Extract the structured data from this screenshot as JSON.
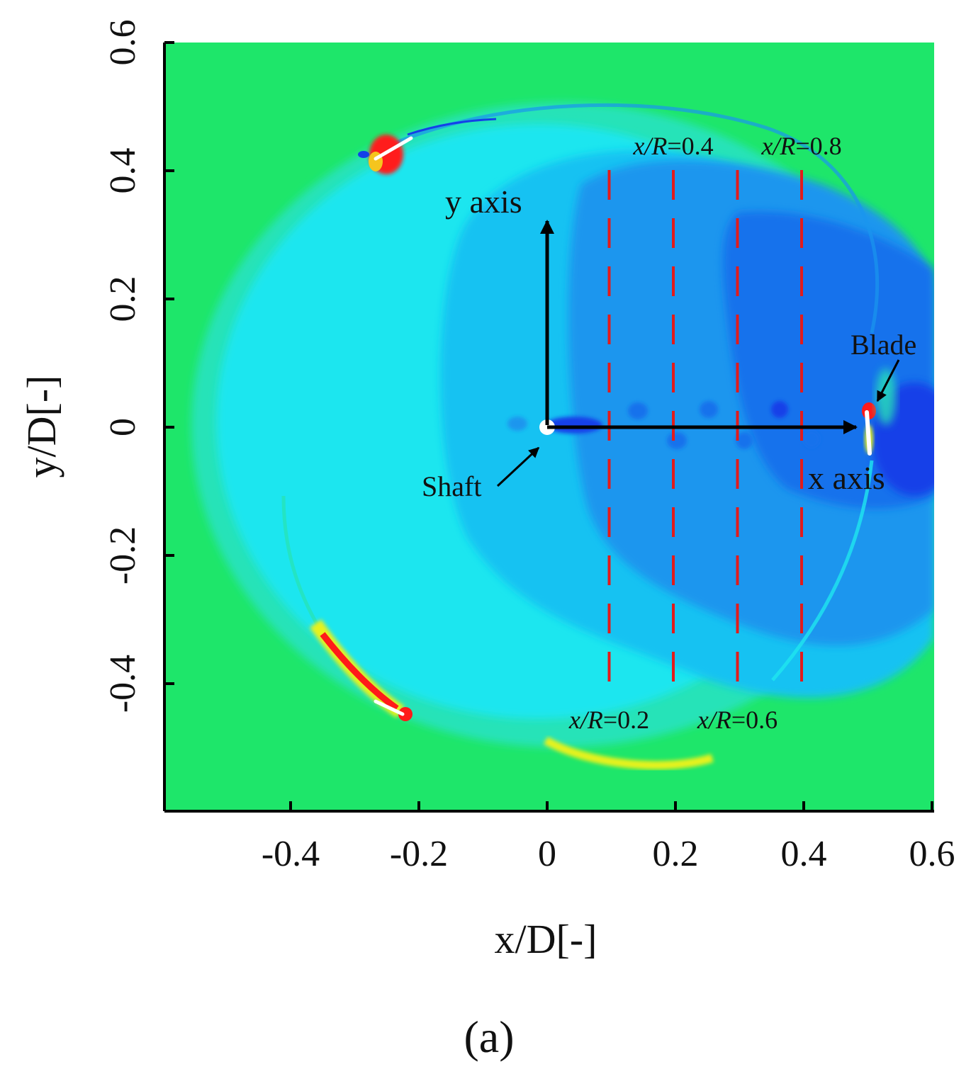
{
  "chart_data": {
    "type": "heatmap",
    "xlabel": "x/D[-]",
    "ylabel": "y/D[-]",
    "xlim": [
      -0.6,
      0.6
    ],
    "ylim": [
      -0.6,
      0.6
    ],
    "x_ticks": [
      -0.4,
      -0.2,
      0,
      0.2,
      0.4,
      0.6
    ],
    "y_ticks": [
      -0.4,
      -0.2,
      0,
      0.2,
      0.4,
      0.6
    ],
    "x_tick_labels": [
      "-0.4",
      "-0.2",
      "0",
      "0.2",
      "0.4",
      "0.6"
    ],
    "y_tick_labels": [
      "-0.4",
      "-0.2",
      "0",
      "0.2",
      "0.4",
      "0.6"
    ],
    "colors": {
      "freestream": "#1ee66a",
      "ring": "#27e3b8",
      "cyan": "#1fe6ef",
      "light_blue": "#18c2f2",
      "mid_blue": "#1a96ee",
      "deep_blue": "#1772ec",
      "dark_blue": "#1440e8",
      "red": "#ff1a1a",
      "yellow": "#e6f21e",
      "line_red": "#e21b1b"
    },
    "measurement_lines": [
      {
        "x_over_R": 0.2,
        "label_prefix": "x/R",
        "label_value": "=0.2",
        "label_position": "bottom"
      },
      {
        "x_over_R": 0.4,
        "label_prefix": "x/R",
        "label_value": "=0.4",
        "label_position": "top"
      },
      {
        "x_over_R": 0.6,
        "label_prefix": "x/R",
        "label_value": "=0.6",
        "label_position": "bottom"
      },
      {
        "x_over_R": 0.8,
        "label_prefix": "x/R",
        "label_value": "=0.8",
        "label_position": "top"
      }
    ],
    "annotations": {
      "y_axis_arrow": "y axis",
      "x_axis_arrow": "x axis",
      "shaft": "Shaft",
      "blade": "Blade"
    },
    "panel_label": "(a)",
    "grid": false
  }
}
